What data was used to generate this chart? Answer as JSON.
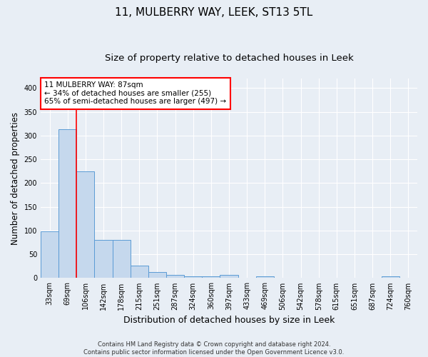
{
  "title": "11, MULBERRY WAY, LEEK, ST13 5TL",
  "subtitle": "Size of property relative to detached houses in Leek",
  "xlabel": "Distribution of detached houses by size in Leek",
  "ylabel": "Number of detached properties",
  "categories": [
    "33sqm",
    "69sqm",
    "106sqm",
    "142sqm",
    "178sqm",
    "215sqm",
    "251sqm",
    "287sqm",
    "324sqm",
    "360sqm",
    "397sqm",
    "433sqm",
    "469sqm",
    "506sqm",
    "542sqm",
    "578sqm",
    "615sqm",
    "651sqm",
    "687sqm",
    "724sqm",
    "760sqm"
  ],
  "bar_values": [
    98,
    313,
    224,
    80,
    80,
    26,
    12,
    6,
    4,
    4,
    6,
    0,
    4,
    0,
    0,
    0,
    0,
    0,
    0,
    4,
    0
  ],
  "bar_color": "#c5d8ed",
  "bar_edge_color": "#5b9bd5",
  "ylim": [
    0,
    420
  ],
  "yticks": [
    0,
    50,
    100,
    150,
    200,
    250,
    300,
    350,
    400
  ],
  "red_line_x": 1.5,
  "annotation_text_line1": "11 MULBERRY WAY: 87sqm",
  "annotation_text_line2": "← 34% of detached houses are smaller (255)",
  "annotation_text_line3": "65% of semi-detached houses are larger (497) →",
  "footer_line1": "Contains HM Land Registry data © Crown copyright and database right 2024.",
  "footer_line2": "Contains public sector information licensed under the Open Government Licence v3.0.",
  "background_color": "#e8eef5",
  "plot_bg_color": "#e8eef5",
  "grid_color": "#ffffff",
  "title_fontsize": 11,
  "subtitle_fontsize": 9.5,
  "ylabel_fontsize": 8.5,
  "xlabel_fontsize": 9,
  "tick_fontsize": 7,
  "footer_fontsize": 6,
  "annotation_fontsize": 7.5
}
